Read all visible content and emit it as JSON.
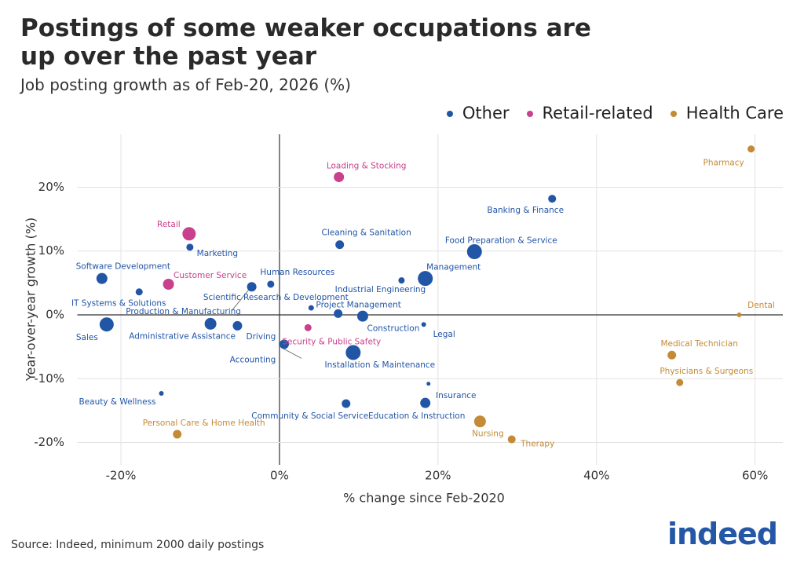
{
  "chart_data": {
    "type": "scatter",
    "title": "Postings of some weaker occupations are up over the past year",
    "subtitle": "Job posting growth as of Feb-20, 2026 (%)",
    "x_label": "% change since Feb-2020",
    "y_label": "Year-over-year growth (%)",
    "source": "Source: Indeed, minimum 2000 daily postings",
    "logo": "indeed",
    "xlim": [
      -25.5,
      63.5
    ],
    "ylim": [
      -23.5,
      28.3
    ],
    "xticks": [
      {
        "value": -20,
        "label": "-20%"
      },
      {
        "value": 0,
        "label": "0%"
      },
      {
        "value": 20,
        "label": "20%"
      },
      {
        "value": 40,
        "label": "40%"
      },
      {
        "value": 60,
        "label": "60%"
      }
    ],
    "yticks": [
      {
        "value": -20,
        "label": "-20%"
      },
      {
        "value": -10,
        "label": "-10%"
      },
      {
        "value": 0,
        "label": "0%"
      },
      {
        "value": 10,
        "label": "10%"
      },
      {
        "value": 20,
        "label": "20%"
      }
    ],
    "grid": true,
    "legend": "top-right",
    "series": [
      {
        "name": "Other",
        "color": "#2155a6",
        "labels": [
          "Banking & Finance",
          "Cleaning & Sanitation",
          "Food Preparation & Service",
          "Marketing",
          "Software Development",
          "Human Resources",
          "Production & Manufacturing",
          "Scientific Research & Development",
          "Management",
          "Industrial Engineering",
          "IT Systems & Solutions",
          "Project Management",
          "Construction",
          "Sales",
          "Administrative Assistance",
          "Driving",
          "Legal",
          "Accounting",
          "Installation & Maintenance",
          "Insurance",
          "Beauty & Wellness",
          "Community & Social Service",
          "Education & Instruction"
        ],
        "x": [
          34.4,
          7.6,
          24.6,
          -11.3,
          -22.4,
          -1.1,
          -3.5,
          4.0,
          18.4,
          15.4,
          -17.7,
          7.4,
          10.5,
          -21.8,
          -8.7,
          -5.3,
          18.2,
          0.6,
          9.3,
          18.8,
          -14.9,
          8.4,
          18.4
        ],
        "values": [
          18.2,
          11.0,
          9.9,
          10.6,
          5.7,
          4.8,
          4.4,
          1.1,
          5.7,
          5.4,
          3.6,
          0.2,
          -0.2,
          -1.5,
          -1.4,
          -1.7,
          -1.5,
          -4.6,
          -5.9,
          -10.8,
          -12.3,
          -13.9,
          -13.8
        ],
        "sizes": [
          5,
          5.5,
          9.5,
          4.5,
          7,
          4.5,
          6,
          3.5,
          9.5,
          4,
          4.5,
          5.5,
          7,
          9,
          7.5,
          6,
          3,
          6,
          9.5,
          2.5,
          3,
          5.5,
          6.5
        ]
      },
      {
        "name": "Retail-related",
        "color": "#c9408c",
        "labels": [
          "Loading & Stocking",
          "Retail",
          "Customer Service",
          "Security & Public Safety"
        ],
        "x": [
          7.5,
          -11.4,
          -14.0,
          3.6
        ],
        "values": [
          21.6,
          12.7,
          4.8,
          -2.0
        ],
        "sizes": [
          6.5,
          8.5,
          7,
          4.5
        ]
      },
      {
        "name": "Health Care",
        "color": "#c48a35",
        "labels": [
          "Pharmacy",
          "Dental",
          "Medical Technician",
          "Physicians & Surgeons",
          "Personal Care & Home Health",
          "Nursing",
          "Therapy"
        ],
        "x": [
          59.5,
          58.0,
          49.5,
          50.5,
          -12.9,
          25.3,
          29.3
        ],
        "values": [
          26.0,
          0.0,
          -6.3,
          -10.6,
          -18.7,
          -16.7,
          -19.5
        ],
        "sizes": [
          4.5,
          3,
          5.5,
          4.5,
          5.5,
          7.5,
          5
        ]
      }
    ]
  }
}
